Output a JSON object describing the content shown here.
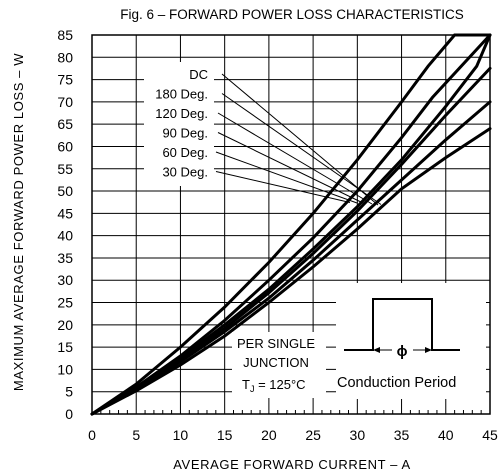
{
  "chart_data": {
    "type": "line",
    "title": "Fig. 6 – FORWARD POWER LOSS CHARACTERISTICS",
    "xlabel": "AVERAGE FORWARD CURRENT – A",
    "ylabel": "MAXIMUM AVERAGE FORWARD POWER LOSS – W",
    "xlim": [
      0,
      45
    ],
    "ylim": [
      0,
      85
    ],
    "x_ticks": [
      "0",
      "5",
      "10",
      "15",
      "20",
      "25",
      "30",
      "35",
      "40",
      "45"
    ],
    "y_ticks": [
      "0",
      "5",
      "10",
      "15",
      "20",
      "25",
      "30",
      "35",
      "40",
      "45",
      "50",
      "55",
      "60",
      "65",
      "70",
      "75",
      "80",
      "85"
    ],
    "grid": true,
    "series": [
      {
        "name": "DC",
        "x": [
          0,
          5,
          10,
          15,
          20,
          25,
          30,
          35,
          40,
          45
        ],
        "y": [
          0,
          5.2,
          11,
          17.5,
          25,
          33,
          41.5,
          50.5,
          57.5,
          64
        ]
      },
      {
        "name": "30 Deg.",
        "x": [
          0,
          5,
          10,
          15,
          20,
          25,
          30,
          35,
          38,
          41,
          45
        ],
        "y": [
          0,
          6.7,
          15,
          24,
          34,
          45,
          57,
          70,
          78,
          85,
          85
        ]
      },
      {
        "name": "60 Deg.",
        "x": [
          0,
          5,
          10,
          15,
          20,
          25,
          30,
          35,
          38.5,
          45
        ],
        "y": [
          0,
          6,
          13,
          21,
          30,
          39.5,
          50,
          62,
          71,
          85
        ]
      },
      {
        "name": "90 Deg.",
        "x": [
          0,
          5,
          10,
          15,
          20,
          25,
          30,
          35,
          40,
          43.5,
          45
        ],
        "y": [
          0,
          5.8,
          12.5,
          20,
          28,
          37,
          46.5,
          57,
          69,
          78,
          85
        ]
      },
      {
        "name": "120 Deg.",
        "x": [
          0,
          5,
          10,
          15,
          20,
          25,
          30,
          35,
          40,
          45
        ],
        "y": [
          0,
          5.6,
          12,
          19.2,
          27.2,
          36,
          45.5,
          56,
          67,
          77.5
        ]
      },
      {
        "name": "180 Deg.",
        "x": [
          0,
          5,
          10,
          15,
          20,
          25,
          30,
          35,
          40,
          45
        ],
        "y": [
          0,
          5.5,
          11.7,
          18.5,
          26,
          34.5,
          43.5,
          52.5,
          61.5,
          70
        ]
      }
    ],
    "annotations": {
      "per_single": "PER SINGLE",
      "junction": "JUNCTION",
      "tj_label": "T",
      "tj_sub": "J",
      "tj_value": " = 125°C",
      "phi": "ϕ",
      "conduction_period": "Conduction Period"
    }
  }
}
